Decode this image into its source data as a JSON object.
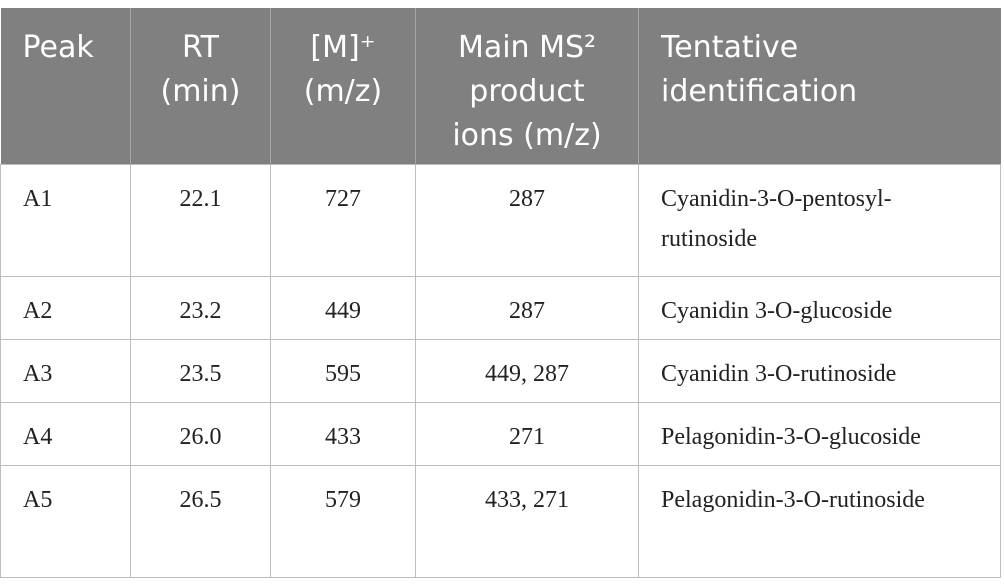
{
  "table": {
    "header": [
      [
        "Peak"
      ],
      [
        "RT",
        "(min)"
      ],
      [
        "[M]⁺",
        "(m/z)"
      ],
      [
        "Main MS²",
        "product",
        "ions (m/z)"
      ],
      [
        "Tentative",
        "identification"
      ]
    ],
    "rows": [
      [
        "A1",
        "22.1",
        "727",
        "287",
        "Cyanidin-3-O-pentosyl-rutinoside"
      ],
      [
        "A2",
        "23.2",
        "449",
        "287",
        "Cyanidin 3-O-glucoside"
      ],
      [
        "A3",
        "23.5",
        "595",
        "449, 287",
        "Cyanidin 3-O-rutinoside"
      ],
      [
        "A4",
        "26.0",
        "433",
        "271",
        "Pelagonidin-3-O-glucoside"
      ],
      [
        "A5",
        "26.5",
        "579",
        "433, 271",
        "Pelagonidin-3-O-rutinoside"
      ]
    ]
  }
}
